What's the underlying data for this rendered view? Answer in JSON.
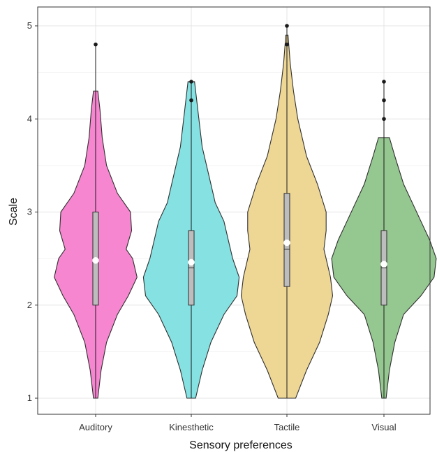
{
  "chart_data": {
    "type": "violin",
    "xlabel": "Sensory preferences",
    "ylabel": "Scale",
    "ylim": [
      1,
      5
    ],
    "yticks": [
      1,
      2,
      3,
      4,
      5
    ],
    "grid": true,
    "categories": [
      "Auditory",
      "Kinesthetic",
      "Tactile",
      "Visual"
    ],
    "colors": {
      "Auditory": "#f77fcf",
      "Kinesthetic": "#7fdfe0",
      "Tactile": "#edd58f",
      "Visual": "#8fc48a"
    },
    "series": [
      {
        "category": "Auditory",
        "min": 1.0,
        "q1": 2.0,
        "median": 2.5,
        "mean": 2.48,
        "q3": 3.0,
        "whisker_high": 4.3,
        "outliers": [
          4.8
        ],
        "density": [
          [
            1.0,
            0.02
          ],
          [
            1.3,
            0.05
          ],
          [
            1.6,
            0.1
          ],
          [
            1.9,
            0.2
          ],
          [
            2.1,
            0.3
          ],
          [
            2.3,
            0.38
          ],
          [
            2.5,
            0.34
          ],
          [
            2.6,
            0.28
          ],
          [
            2.8,
            0.33
          ],
          [
            3.0,
            0.32
          ],
          [
            3.2,
            0.2
          ],
          [
            3.5,
            0.1
          ],
          [
            3.8,
            0.06
          ],
          [
            4.1,
            0.04
          ],
          [
            4.3,
            0.02
          ]
        ]
      },
      {
        "category": "Kinesthetic",
        "min": 1.0,
        "q1": 2.0,
        "median": 2.4,
        "mean": 2.46,
        "q3": 2.8,
        "whisker_high": 4.0,
        "outliers": [
          4.2,
          4.4
        ],
        "density": [
          [
            1.0,
            0.04
          ],
          [
            1.3,
            0.1
          ],
          [
            1.6,
            0.18
          ],
          [
            1.9,
            0.3
          ],
          [
            2.1,
            0.42
          ],
          [
            2.3,
            0.44
          ],
          [
            2.5,
            0.38
          ],
          [
            2.7,
            0.34
          ],
          [
            2.9,
            0.3
          ],
          [
            3.1,
            0.22
          ],
          [
            3.4,
            0.16
          ],
          [
            3.7,
            0.1
          ],
          [
            4.0,
            0.07
          ],
          [
            4.2,
            0.05
          ],
          [
            4.4,
            0.03
          ]
        ]
      },
      {
        "category": "Tactile",
        "min": 1.0,
        "q1": 2.2,
        "median": 2.6,
        "mean": 2.67,
        "q3": 3.2,
        "whisker_high": 4.6,
        "outliers": [
          4.8,
          5.0
        ],
        "density": [
          [
            1.0,
            0.08
          ],
          [
            1.3,
            0.18
          ],
          [
            1.6,
            0.3
          ],
          [
            1.9,
            0.38
          ],
          [
            2.1,
            0.42
          ],
          [
            2.3,
            0.4
          ],
          [
            2.6,
            0.34
          ],
          [
            2.8,
            0.36
          ],
          [
            3.0,
            0.36
          ],
          [
            3.3,
            0.28
          ],
          [
            3.6,
            0.18
          ],
          [
            4.0,
            0.1
          ],
          [
            4.3,
            0.06
          ],
          [
            4.6,
            0.03
          ],
          [
            4.9,
            0.01
          ]
        ]
      },
      {
        "category": "Visual",
        "min": 1.0,
        "q1": 2.0,
        "median": 2.4,
        "mean": 2.44,
        "q3": 2.8,
        "whisker_high": 3.8,
        "outliers": [
          4.0,
          4.2,
          4.4
        ],
        "density": [
          [
            1.0,
            0.02
          ],
          [
            1.3,
            0.05
          ],
          [
            1.6,
            0.1
          ],
          [
            1.9,
            0.18
          ],
          [
            2.1,
            0.34
          ],
          [
            2.3,
            0.46
          ],
          [
            2.5,
            0.48
          ],
          [
            2.7,
            0.42
          ],
          [
            2.9,
            0.34
          ],
          [
            3.1,
            0.26
          ],
          [
            3.3,
            0.18
          ],
          [
            3.6,
            0.1
          ],
          [
            3.8,
            0.05
          ]
        ]
      }
    ]
  }
}
